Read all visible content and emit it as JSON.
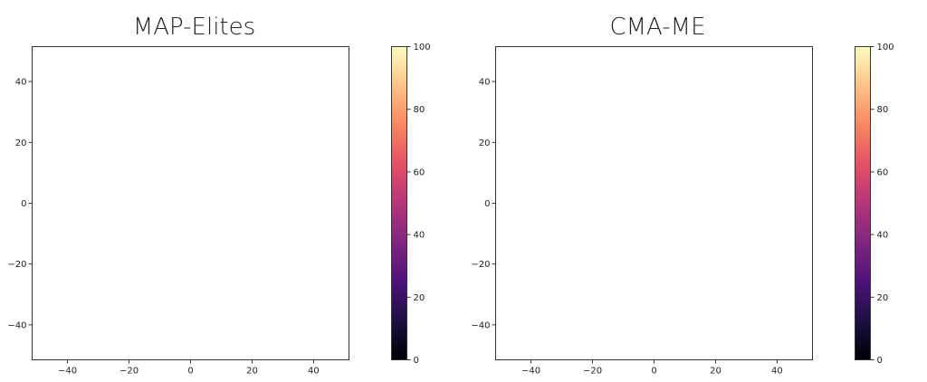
{
  "chart_data": [
    {
      "type": "heatmap",
      "title": "MAP-Elites",
      "xlim": [
        -51.5,
        51.5
      ],
      "ylim": [
        -51.5,
        51.5
      ],
      "xticks": [
        -40,
        -20,
        0,
        20,
        40
      ],
      "yticks": [
        -40,
        -20,
        0,
        20,
        40
      ],
      "xtick_labels": [
        "−40",
        "−20",
        "0",
        "20",
        "40"
      ],
      "ytick_labels": [
        "−40",
        "−20",
        "0",
        "20",
        "40"
      ],
      "cells": [],
      "grid": false,
      "colorbar": {
        "colormap": "magma",
        "range": [
          0,
          100
        ],
        "ticks": [
          0,
          20,
          40,
          60,
          80,
          100
        ],
        "tick_labels": [
          "0",
          "20",
          "40",
          "60",
          "80",
          "100"
        ],
        "placement": "right"
      }
    },
    {
      "type": "heatmap",
      "title": "CMA-ME",
      "xlim": [
        -51.5,
        51.5
      ],
      "ylim": [
        -51.5,
        51.5
      ],
      "xticks": [
        -40,
        -20,
        0,
        20,
        40
      ],
      "yticks": [
        -40,
        -20,
        0,
        20,
        40
      ],
      "xtick_labels": [
        "−40",
        "−20",
        "0",
        "20",
        "40"
      ],
      "ytick_labels": [
        "−40",
        "−20",
        "0",
        "20",
        "40"
      ],
      "cells": [],
      "grid": false,
      "colorbar": {
        "colormap": "magma",
        "range": [
          0,
          100
        ],
        "ticks": [
          0,
          20,
          40,
          60,
          80,
          100
        ],
        "tick_labels": [
          "0",
          "20",
          "40",
          "60",
          "80",
          "100"
        ],
        "placement": "right"
      }
    }
  ],
  "colors": {
    "magma_stops": [
      "#000004",
      "#1c1044",
      "#4f127b",
      "#812581",
      "#b5367a",
      "#e55064",
      "#fb8761",
      "#fec287",
      "#fcfdbf"
    ],
    "axis": "#333333",
    "text": "#222222"
  }
}
